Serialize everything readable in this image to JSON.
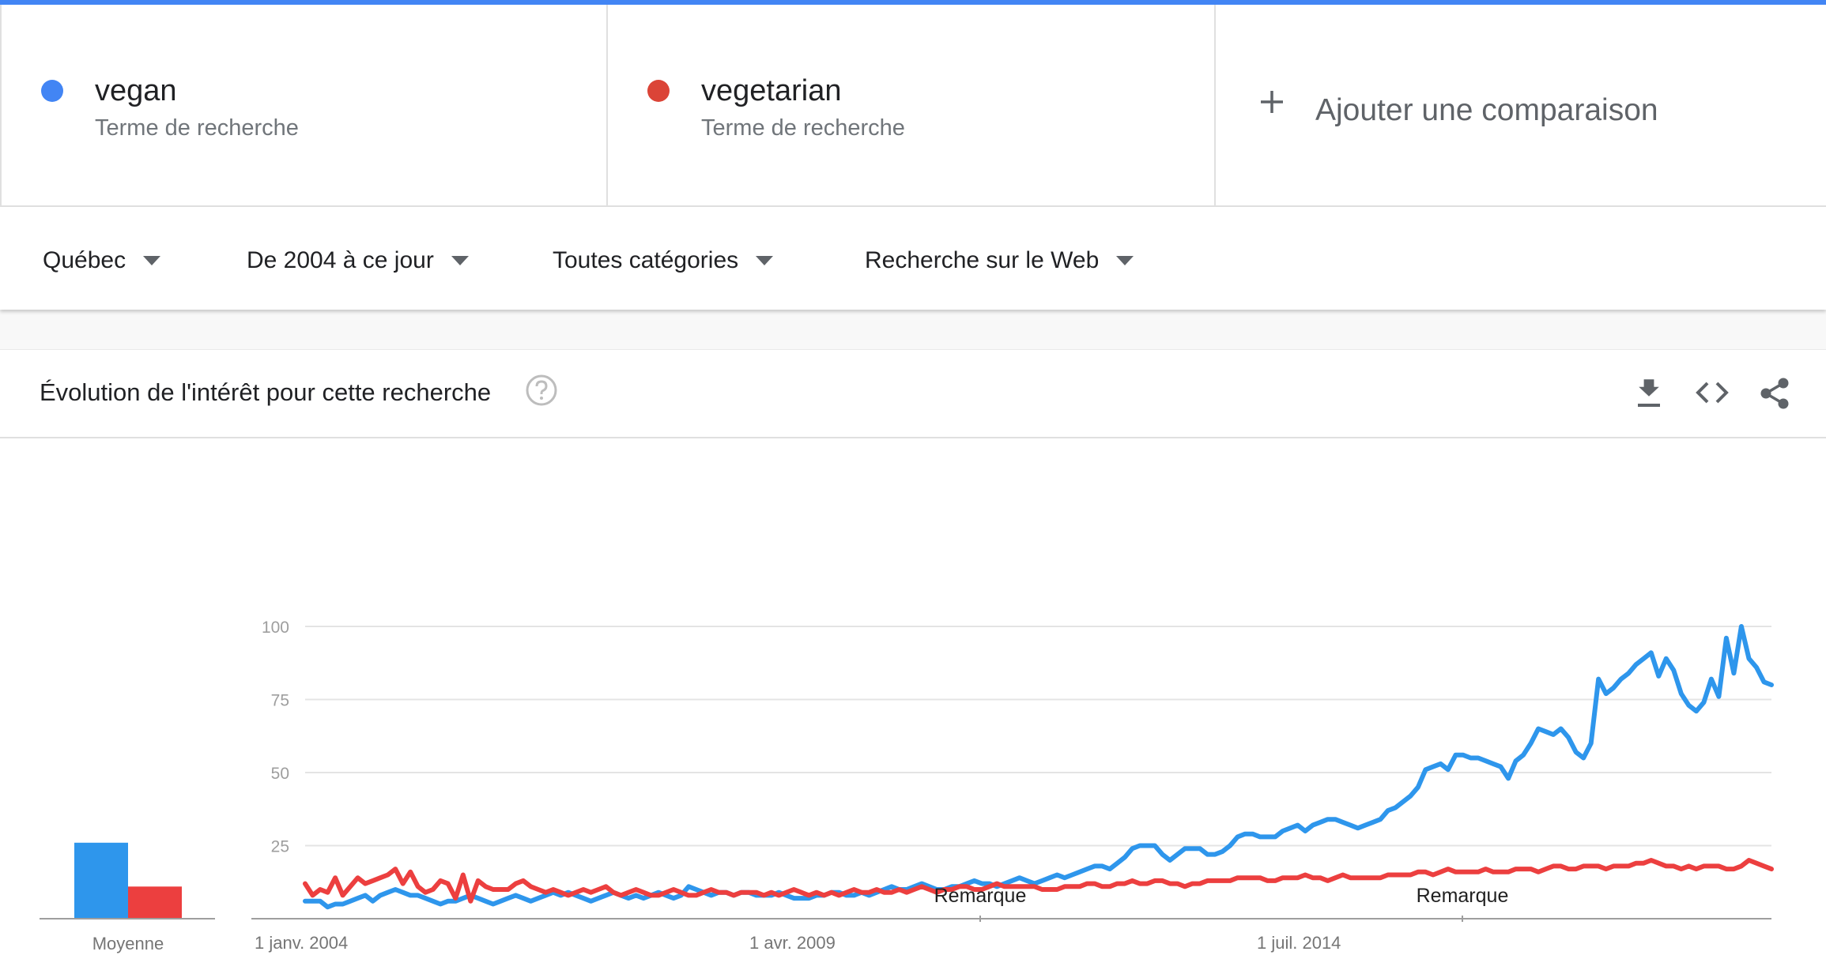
{
  "colors": {
    "accent": "#4285f4",
    "vegan": "#4285f4",
    "vegetarian": "#db4437",
    "vegan_line": "#2e96ec",
    "vegetarian_line": "#ec3f3f"
  },
  "terms": [
    {
      "name": "vegan",
      "type": "Terme de recherche"
    },
    {
      "name": "vegetarian",
      "type": "Terme de recherche"
    }
  ],
  "add_comparison": {
    "icon": "plus-icon",
    "label": "Ajouter une comparaison"
  },
  "filters": [
    {
      "label": "Québec"
    },
    {
      "label": "De 2004 à ce jour"
    },
    {
      "label": "Toutes catégories"
    },
    {
      "label": "Recherche sur le Web"
    }
  ],
  "card": {
    "title": "Évolution de l'intérêt pour cette recherche",
    "icons": [
      "help-icon",
      "download-icon",
      "embed-code-icon",
      "share-icon"
    ]
  },
  "chart_data": {
    "type": "line",
    "yticks": [
      25,
      50,
      75,
      100
    ],
    "ylim": [
      0,
      100
    ],
    "xtick_labels": [
      "1 janv. 2004",
      "1 avr. 2009",
      "1 juil. 2014"
    ],
    "xlim": [
      "2004-01",
      "2018-07"
    ],
    "grid": true,
    "annotations": [
      {
        "label": "Remarque",
        "x": "2011-01"
      },
      {
        "label": "Remarque",
        "x": "2016-01"
      }
    ],
    "average": {
      "label": "Moyenne",
      "values": [
        26,
        11
      ]
    },
    "series": [
      {
        "name": "vegan",
        "values": [
          6,
          6,
          6,
          4,
          5,
          5,
          6,
          7,
          8,
          6,
          8,
          9,
          10,
          9,
          8,
          8,
          7,
          6,
          5,
          6,
          6,
          7,
          8,
          7,
          6,
          5,
          6,
          7,
          8,
          7,
          6,
          7,
          8,
          9,
          8,
          9,
          8,
          7,
          6,
          7,
          8,
          9,
          8,
          7,
          8,
          7,
          8,
          9,
          8,
          7,
          8,
          11,
          10,
          9,
          8,
          9,
          9,
          8,
          9,
          9,
          8,
          8,
          8,
          9,
          8,
          7,
          7,
          7,
          8,
          8,
          9,
          9,
          8,
          8,
          9,
          8,
          9,
          10,
          11,
          10,
          10,
          11,
          12,
          11,
          10,
          10,
          11,
          11,
          12,
          13,
          12,
          12,
          11,
          12,
          13,
          14,
          13,
          12,
          13,
          14,
          15,
          14,
          15,
          16,
          17,
          18,
          18,
          17,
          19,
          21,
          24,
          25,
          25,
          25,
          22,
          20,
          22,
          24,
          24,
          24,
          22,
          22,
          23,
          25,
          28,
          29,
          29,
          28,
          28,
          28,
          30,
          31,
          32,
          30,
          32,
          33,
          34,
          34,
          33,
          32,
          31,
          32,
          33,
          34,
          37,
          38,
          40,
          42,
          45,
          51,
          52,
          53,
          51,
          56,
          56,
          55,
          55,
          54,
          53,
          52,
          48,
          54,
          56,
          60,
          65,
          64,
          63,
          65,
          62,
          57,
          55,
          60,
          82,
          77,
          79,
          82,
          84,
          87,
          89,
          91,
          83,
          89,
          85,
          77,
          73,
          71,
          74,
          82,
          76,
          96,
          84,
          100,
          89,
          86,
          81,
          80
        ]
      },
      {
        "name": "vegetarian",
        "values": [
          12,
          8,
          10,
          9,
          14,
          8,
          11,
          14,
          12,
          13,
          14,
          15,
          17,
          12,
          16,
          11,
          9,
          10,
          13,
          12,
          7,
          15,
          6,
          13,
          11,
          10,
          10,
          10,
          12,
          13,
          11,
          10,
          9,
          10,
          9,
          8,
          9,
          10,
          9,
          10,
          11,
          9,
          8,
          9,
          10,
          9,
          8,
          8,
          9,
          10,
          9,
          8,
          8,
          9,
          10,
          9,
          9,
          8,
          9,
          9,
          9,
          8,
          9,
          8,
          9,
          10,
          9,
          8,
          9,
          8,
          9,
          8,
          9,
          10,
          9,
          9,
          10,
          9,
          9,
          10,
          9,
          10,
          11,
          10,
          9,
          10,
          10,
          11,
          11,
          10,
          10,
          11,
          12,
          11,
          11,
          11,
          11,
          11,
          10,
          10,
          10,
          11,
          11,
          11,
          12,
          12,
          11,
          11,
          12,
          12,
          13,
          12,
          12,
          13,
          13,
          12,
          12,
          11,
          12,
          12,
          13,
          13,
          13,
          13,
          14,
          14,
          14,
          14,
          13,
          13,
          14,
          14,
          14,
          15,
          14,
          14,
          13,
          14,
          15,
          14,
          14,
          14,
          14,
          14,
          15,
          15,
          15,
          15,
          16,
          16,
          15,
          16,
          17,
          16,
          16,
          16,
          16,
          17,
          16,
          16,
          16,
          17,
          17,
          17,
          16,
          17,
          18,
          18,
          17,
          17,
          18,
          18,
          18,
          17,
          18,
          18,
          18,
          19,
          19,
          20,
          19,
          18,
          18,
          17,
          18,
          17,
          18,
          18,
          18,
          17,
          17,
          18,
          20,
          19,
          18,
          17
        ]
      }
    ]
  }
}
